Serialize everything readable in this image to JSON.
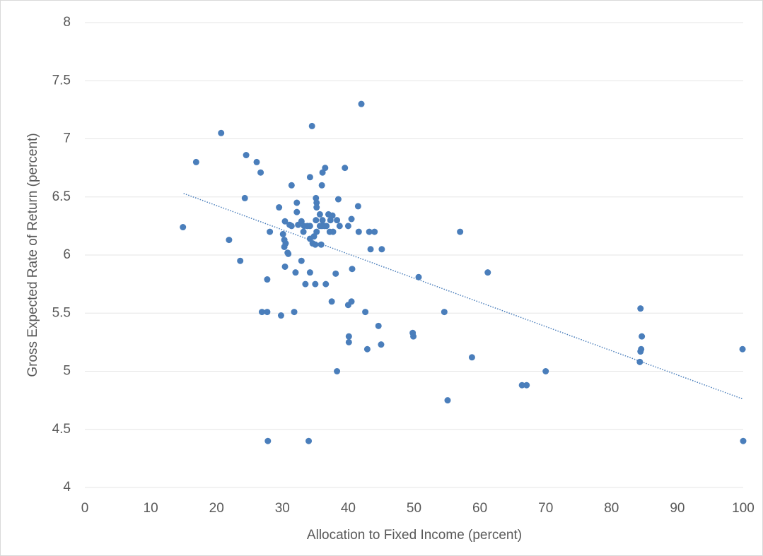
{
  "chart_data": {
    "type": "scatter",
    "x_label": "Allocation to Fixed Income (percent)",
    "y_label": "Gross Expected Rate of Return (percent)",
    "xlim": [
      0,
      100
    ],
    "xticks": [
      0,
      10,
      20,
      30,
      40,
      50,
      60,
      70,
      80,
      90,
      100
    ],
    "ylim": [
      4,
      8
    ],
    "yticks": [
      4,
      4.5,
      5,
      5.5,
      6,
      6.5,
      7,
      7.5,
      8
    ],
    "grid": true,
    "series": [
      {
        "color": "#4a7ebb",
        "x": [
          14.9,
          16.9,
          20.7,
          21.9,
          23.6,
          24.3,
          24.5,
          26.1,
          26.7,
          26.9,
          27.7,
          27.7,
          27.8,
          28.1,
          29.5,
          29.8,
          30.1,
          30.3,
          30.3,
          30.4,
          30.4,
          30.5,
          30.8,
          30.9,
          31.1,
          31.4,
          31.4,
          31.8,
          32.0,
          32.2,
          32.2,
          32.4,
          32.9,
          32.9,
          33.2,
          33.3,
          33.5,
          33.8,
          34.0,
          34.2,
          34.2,
          34.2,
          34.2,
          34.5,
          34.6,
          34.8,
          35.0,
          35.0,
          35.1,
          35.1,
          35.2,
          35.2,
          35.2,
          35.7,
          35.7,
          35.9,
          36.0,
          36.0,
          36.1,
          36.1,
          36.5,
          36.4,
          36.6,
          36.7,
          37.0,
          37.2,
          37.3,
          37.5,
          37.6,
          37.7,
          38.1,
          38.3,
          38.3,
          38.5,
          38.7,
          39.5,
          40.0,
          40.0,
          40.1,
          40.1,
          40.5,
          40.5,
          40.6,
          41.5,
          41.6,
          42.0,
          42.6,
          42.9,
          43.2,
          43.4,
          44.0,
          44.6,
          45.0,
          45.1,
          49.8,
          49.9,
          50.7,
          54.6,
          55.1,
          57.0,
          58.8,
          61.2,
          66.4,
          67.1,
          70.0,
          84.4,
          84.4,
          84.5,
          84.6,
          84.3,
          99.9,
          100
        ],
        "y": [
          6.24,
          6.8,
          7.05,
          6.13,
          5.95,
          6.49,
          6.86,
          6.8,
          6.71,
          5.51,
          5.51,
          5.79,
          4.4,
          6.2,
          6.41,
          5.48,
          6.18,
          6.13,
          6.07,
          5.9,
          6.29,
          6.1,
          6.02,
          6.01,
          6.26,
          6.6,
          6.25,
          5.51,
          5.85,
          6.45,
          6.37,
          6.26,
          5.95,
          6.29,
          6.2,
          6.25,
          5.75,
          6.25,
          4.4,
          6.25,
          6.67,
          5.85,
          6.14,
          7.11,
          6.1,
          6.16,
          5.75,
          6.09,
          6.3,
          6.49,
          6.45,
          6.41,
          6.2,
          6.25,
          6.35,
          6.09,
          6.25,
          6.6,
          6.71,
          6.3,
          6.75,
          6.25,
          5.75,
          6.25,
          6.35,
          6.2,
          6.3,
          5.6,
          6.34,
          6.2,
          5.84,
          6.3,
          5.0,
          6.48,
          6.25,
          6.75,
          6.25,
          5.57,
          5.3,
          5.25,
          5.6,
          6.31,
          5.88,
          6.42,
          6.2,
          7.3,
          5.51,
          5.19,
          6.2,
          6.05,
          6.2,
          5.39,
          5.23,
          6.05,
          5.33,
          5.3,
          5.81,
          5.51,
          4.75,
          6.2,
          5.12,
          5.85,
          4.88,
          4.88,
          5.0,
          5.54,
          5.17,
          5.19,
          5.3,
          5.08,
          5.19,
          4.4
        ]
      }
    ],
    "trendline": {
      "color": "#4a7ebb",
      "x": [
        15,
        100
      ],
      "y": [
        6.53,
        4.76
      ]
    }
  }
}
